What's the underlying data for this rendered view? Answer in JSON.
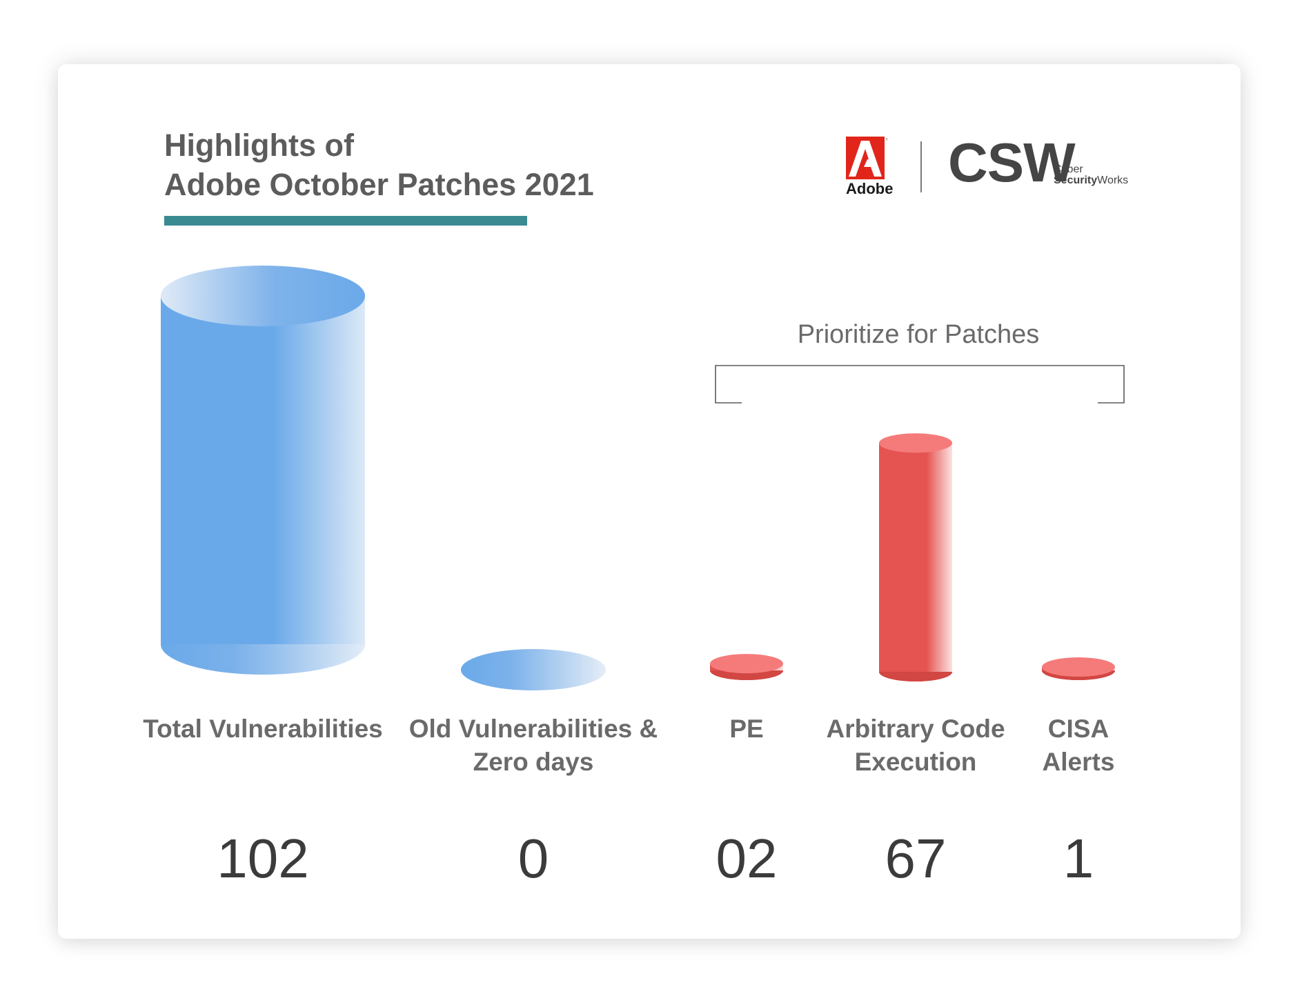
{
  "title_line1": "Highlights of",
  "title_line2": "Adobe October Patches 2021",
  "logos": {
    "adobe": "Adobe",
    "csw_mark": "CSW",
    "csw_line1": "Cyber",
    "csw_line2_bold": "Security",
    "csw_line2_rest": "Works"
  },
  "bracket_label": "Prioritize for Patches",
  "colors": {
    "title_rule": "#3a8a92",
    "blue": "#6aa9e9",
    "red": "#e55451"
  },
  "chart_data": {
    "type": "bar",
    "style": "3d-cylinder",
    "categories": [
      "Total Vulnerabilities",
      "Old Vulnerabilities & Zero days",
      "PE",
      "Arbitrary Code Execution",
      "CISA Alerts"
    ],
    "category_lines": [
      [
        "Total Vulnerabilities"
      ],
      [
        "Old Vulnerabilities &",
        "Zero days"
      ],
      [
        "PE"
      ],
      [
        "Arbitrary Code",
        "Execution"
      ],
      [
        "CISA",
        "Alerts"
      ]
    ],
    "values": [
      102,
      0,
      2,
      67,
      1
    ],
    "value_labels": [
      "102",
      "0",
      "02",
      "67",
      "1"
    ],
    "bar_colors": [
      "blue",
      "blue",
      "red",
      "red",
      "red"
    ],
    "group_bracket": {
      "label": "Prioritize for Patches",
      "spans": [
        "PE",
        "Arbitrary Code Execution",
        "CISA Alerts"
      ]
    },
    "title": "Highlights of Adobe October Patches 2021"
  }
}
